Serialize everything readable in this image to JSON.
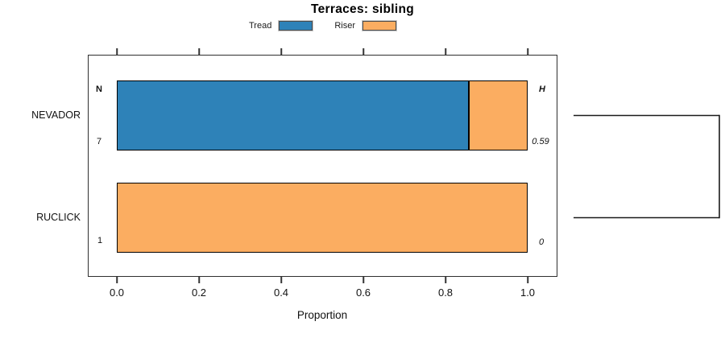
{
  "title": "Terraces: sibling",
  "legend": {
    "items": [
      {
        "label": "Tread",
        "color": "#2E82B8"
      },
      {
        "label": "Riser",
        "color": "#FBAD61"
      }
    ]
  },
  "headers": {
    "n": "N",
    "h": "H"
  },
  "rows": [
    {
      "category": "NEVADOR",
      "n": "7",
      "h": "0.59"
    },
    {
      "category": "RUCLICK",
      "n": "1",
      "h": "0"
    }
  ],
  "x_axis": {
    "label": "Proportion",
    "ticks": [
      "0.0",
      "0.2",
      "0.4",
      "0.6",
      "0.8",
      "1.0"
    ]
  },
  "colors": {
    "tread": "#2E82B8",
    "riser": "#FBAD61",
    "bar_border": "#000000",
    "box_border": "#2F2F2F"
  },
  "chart_data": {
    "type": "bar",
    "orientation": "horizontal",
    "stacked": true,
    "title": "Terraces: sibling",
    "categories": [
      "NEVADOR",
      "RUCLICK"
    ],
    "series": [
      {
        "name": "Tread",
        "color": "#2E82B8",
        "values": [
          0.86,
          0
        ]
      },
      {
        "name": "Riser",
        "color": "#FBAD61",
        "values": [
          0.14,
          1.0
        ]
      }
    ],
    "xlabel": "Proportion",
    "xlim": [
      0,
      1
    ],
    "xticks": [
      0.0,
      0.2,
      0.4,
      0.6,
      0.8,
      1.0
    ],
    "grid": false,
    "legend_position": "top-center",
    "annotations": {
      "N_header": "N",
      "H_header": "H",
      "N_values": [
        "7",
        "1"
      ],
      "H_values": [
        "0.59",
        "0"
      ]
    },
    "right_dendrogram": {
      "description": "cluster tree joining the two category rows at the right margin",
      "joined_categories": [
        "NEVADOR",
        "RUCLICK"
      ]
    }
  }
}
